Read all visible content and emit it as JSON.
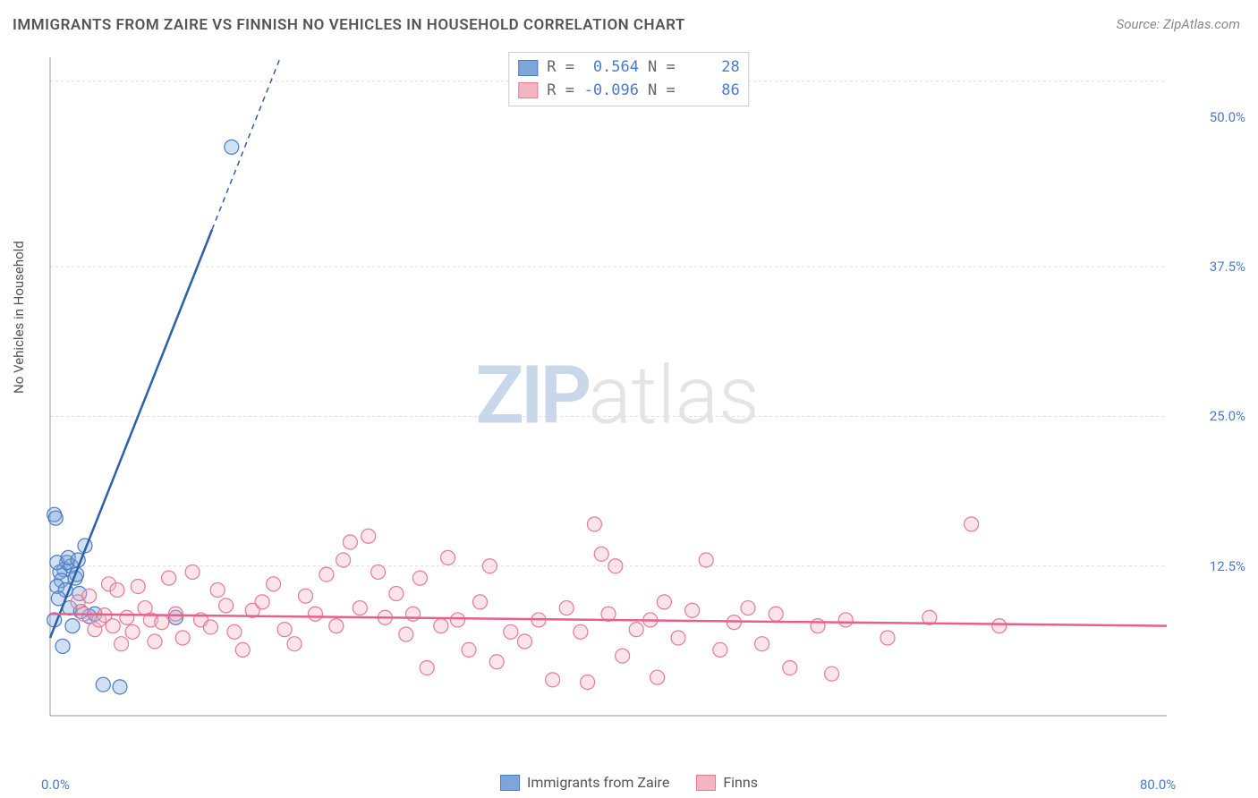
{
  "title": "IMMIGRANTS FROM ZAIRE VS FINNISH NO VEHICLES IN HOUSEHOLD CORRELATION CHART",
  "source": "Source: ZipAtlas.com",
  "ylabel": "No Vehicles in Household",
  "watermark": {
    "zip": "ZIP",
    "atlas": "atlas"
  },
  "chart": {
    "type": "scatter",
    "background_color": "#ffffff",
    "grid_color": "#dcdcdc",
    "axis_color": "#999999",
    "text_color": "#555555",
    "tick_color": "#4a7bc8",
    "xlim": [
      0,
      80
    ],
    "ylim": [
      0,
      55
    ],
    "xticks": [
      {
        "v": 0,
        "l": "0.0%"
      },
      {
        "v": 80,
        "l": "80.0%"
      }
    ],
    "yticks": [
      {
        "v": 12.5,
        "l": "12.5%"
      },
      {
        "v": 25,
        "l": "25.0%"
      },
      {
        "v": 37.5,
        "l": "37.5%"
      },
      {
        "v": 50,
        "l": "50.0%"
      }
    ],
    "grid_y": [
      12.5,
      25,
      37.5,
      53
    ],
    "marker_radius": 8,
    "marker_stroke_width": 1.2,
    "marker_fill_opacity": 0.35,
    "trend_width": 2.5,
    "trend_dash": "6,5"
  },
  "series": [
    {
      "id": "zaire",
      "label": "Immigrants from Zaire",
      "color": "#7ca5d8",
      "stroke": "#4a7bc8",
      "trend_color": "#2e5fa8",
      "R": "0.564",
      "N": "28",
      "trend": {
        "x1": 0,
        "y1": 6.5,
        "x2": 16.5,
        "y2": 55,
        "solid_until_x": 11.6
      },
      "points": [
        [
          0.3,
          16.8
        ],
        [
          0.4,
          16.5
        ],
        [
          1.0,
          12.2
        ],
        [
          0.7,
          12.0
        ],
        [
          1.5,
          12.5
        ],
        [
          1.2,
          12.8
        ],
        [
          0.8,
          11.3
        ],
        [
          1.8,
          11.5
        ],
        [
          0.5,
          10.8
        ],
        [
          1.1,
          10.5
        ],
        [
          2.1,
          10.2
        ],
        [
          0.6,
          9.8
        ],
        [
          2.5,
          14.2
        ],
        [
          1.4,
          9.0
        ],
        [
          2.8,
          8.3
        ],
        [
          0.3,
          8.0
        ],
        [
          2.2,
          8.7
        ],
        [
          3.2,
          8.5
        ],
        [
          9.0,
          8.2
        ],
        [
          1.6,
          7.5
        ],
        [
          0.9,
          5.8
        ],
        [
          3.8,
          2.6
        ],
        [
          5.0,
          2.4
        ],
        [
          0.5,
          12.8
        ],
        [
          1.9,
          11.8
        ],
        [
          1.3,
          13.2
        ],
        [
          2.0,
          13.0
        ],
        [
          13.0,
          47.5
        ]
      ]
    },
    {
      "id": "finns",
      "label": "Finns",
      "color": "#f4b5c3",
      "stroke": "#e77a95",
      "trend_color": "#e86089",
      "R": "-0.096",
      "N": "86",
      "trend": {
        "x1": 0,
        "y1": 8.5,
        "x2": 80,
        "y2": 7.5,
        "solid_until_x": 80
      },
      "points": [
        [
          2.0,
          9.5
        ],
        [
          2.4,
          8.5
        ],
        [
          2.8,
          10.0
        ],
        [
          3.2,
          7.2
        ],
        [
          3.5,
          8.0
        ],
        [
          3.9,
          8.4
        ],
        [
          4.2,
          11.0
        ],
        [
          4.5,
          7.5
        ],
        [
          4.8,
          10.5
        ],
        [
          5.1,
          6.0
        ],
        [
          5.5,
          8.2
        ],
        [
          5.9,
          7.0
        ],
        [
          6.3,
          10.8
        ],
        [
          6.8,
          9.0
        ],
        [
          7.2,
          8.0
        ],
        [
          7.5,
          6.2
        ],
        [
          8.0,
          7.8
        ],
        [
          8.5,
          11.5
        ],
        [
          9.0,
          8.5
        ],
        [
          9.5,
          6.5
        ],
        [
          10.2,
          12.0
        ],
        [
          10.8,
          8.0
        ],
        [
          11.5,
          7.4
        ],
        [
          12.0,
          10.5
        ],
        [
          12.6,
          9.2
        ],
        [
          13.2,
          7.0
        ],
        [
          13.8,
          5.5
        ],
        [
          14.5,
          8.8
        ],
        [
          15.2,
          9.5
        ],
        [
          16.0,
          11.0
        ],
        [
          16.8,
          7.2
        ],
        [
          17.5,
          6.0
        ],
        [
          18.3,
          10.0
        ],
        [
          19.0,
          8.5
        ],
        [
          19.8,
          11.8
        ],
        [
          20.5,
          7.5
        ],
        [
          21.0,
          13.0
        ],
        [
          21.5,
          14.5
        ],
        [
          22.2,
          9.0
        ],
        [
          22.8,
          15.0
        ],
        [
          23.5,
          12.0
        ],
        [
          24.0,
          8.2
        ],
        [
          24.8,
          10.2
        ],
        [
          25.5,
          6.8
        ],
        [
          26.0,
          8.5
        ],
        [
          26.5,
          11.5
        ],
        [
          27.0,
          4.0
        ],
        [
          28.0,
          7.5
        ],
        [
          28.5,
          13.2
        ],
        [
          29.2,
          8.0
        ],
        [
          30.0,
          5.5
        ],
        [
          30.8,
          9.5
        ],
        [
          31.5,
          12.5
        ],
        [
          32.0,
          4.5
        ],
        [
          33.0,
          7.0
        ],
        [
          34.0,
          6.2
        ],
        [
          35.0,
          8.0
        ],
        [
          36.0,
          3.0
        ],
        [
          37.0,
          9.0
        ],
        [
          38.0,
          7.0
        ],
        [
          38.5,
          2.8
        ],
        [
          39.0,
          16.0
        ],
        [
          39.5,
          13.5
        ],
        [
          40.0,
          8.5
        ],
        [
          40.5,
          12.5
        ],
        [
          41.0,
          5.0
        ],
        [
          42.0,
          7.2
        ],
        [
          43.0,
          8.0
        ],
        [
          43.5,
          3.2
        ],
        [
          44.0,
          9.5
        ],
        [
          45.0,
          6.5
        ],
        [
          46.0,
          8.8
        ],
        [
          47.0,
          13.0
        ],
        [
          48.0,
          5.5
        ],
        [
          49.0,
          7.8
        ],
        [
          50.0,
          9.0
        ],
        [
          51.0,
          6.0
        ],
        [
          52.0,
          8.5
        ],
        [
          53.0,
          4.0
        ],
        [
          55.0,
          7.5
        ],
        [
          56.0,
          3.5
        ],
        [
          57.0,
          8.0
        ],
        [
          60.0,
          6.5
        ],
        [
          63.0,
          8.2
        ],
        [
          66.0,
          16.0
        ],
        [
          68.0,
          7.5
        ]
      ]
    }
  ],
  "stat_legend": {
    "R_label": "R =",
    "N_label": "N ="
  },
  "bottom_legend_labels": {
    "zaire": "Immigrants from Zaire",
    "finns": "Finns"
  }
}
